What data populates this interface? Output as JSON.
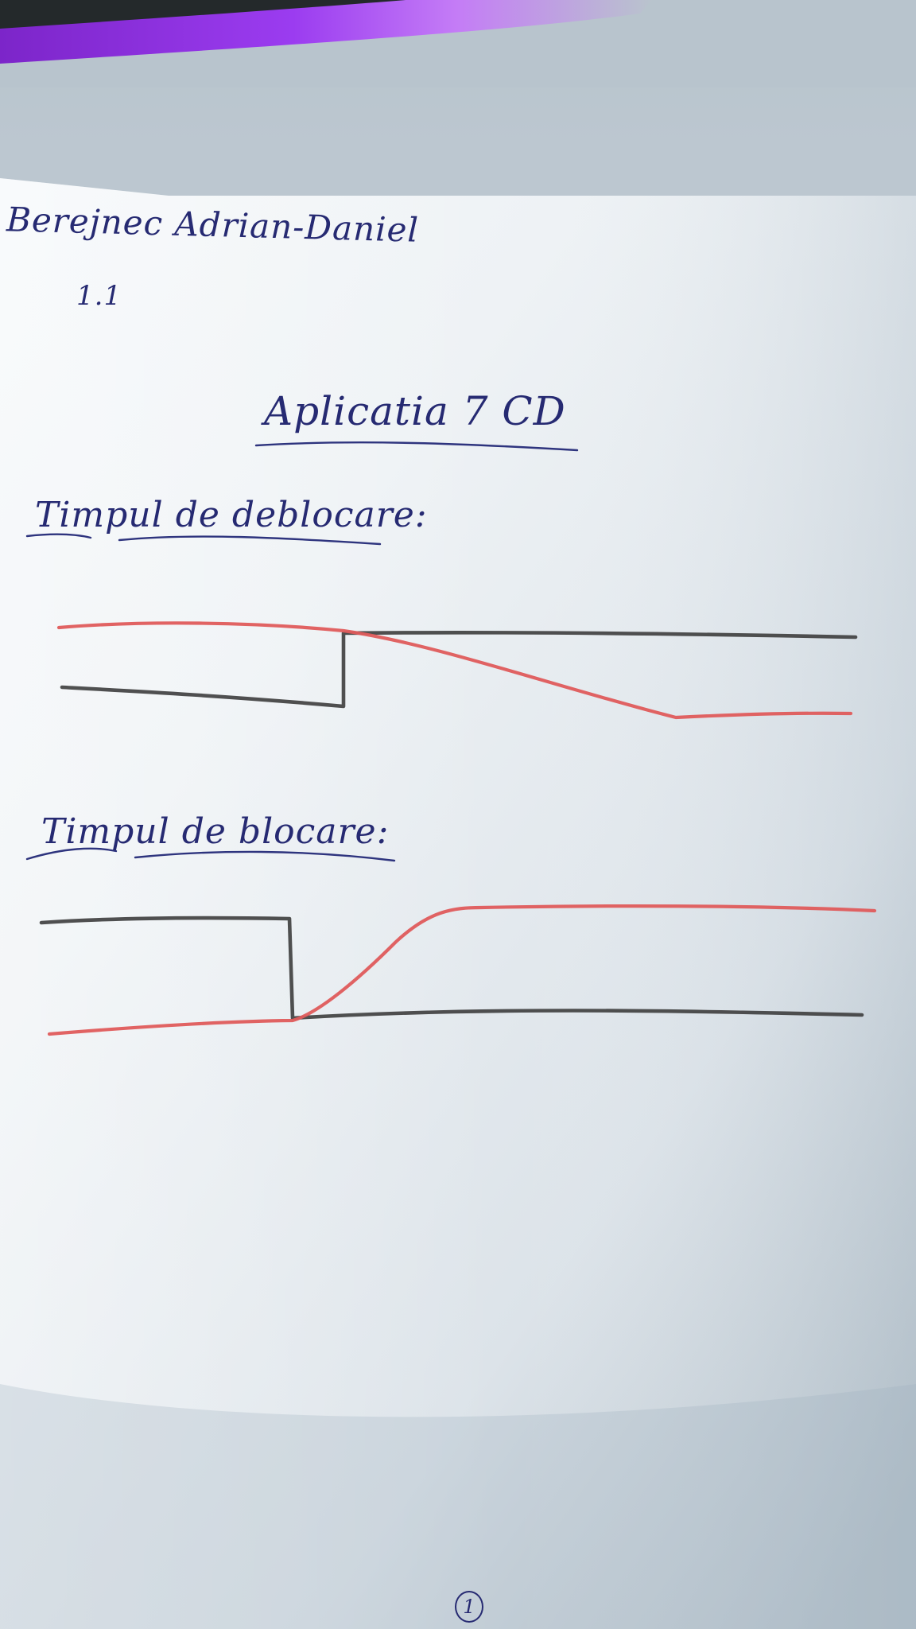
{
  "handwriting": {
    "name": "Berejnec Adrian-Daniel",
    "group": "1.1",
    "title": "Aplicatia 7 CD",
    "section_unblock": "Timpul de deblocare:",
    "section_block": "Timpul de blocare:",
    "page_number": "1"
  },
  "pencil_colors": {
    "graphite": "#3d3d3d",
    "red": "#df5b5b",
    "ink": "#262a72"
  }
}
